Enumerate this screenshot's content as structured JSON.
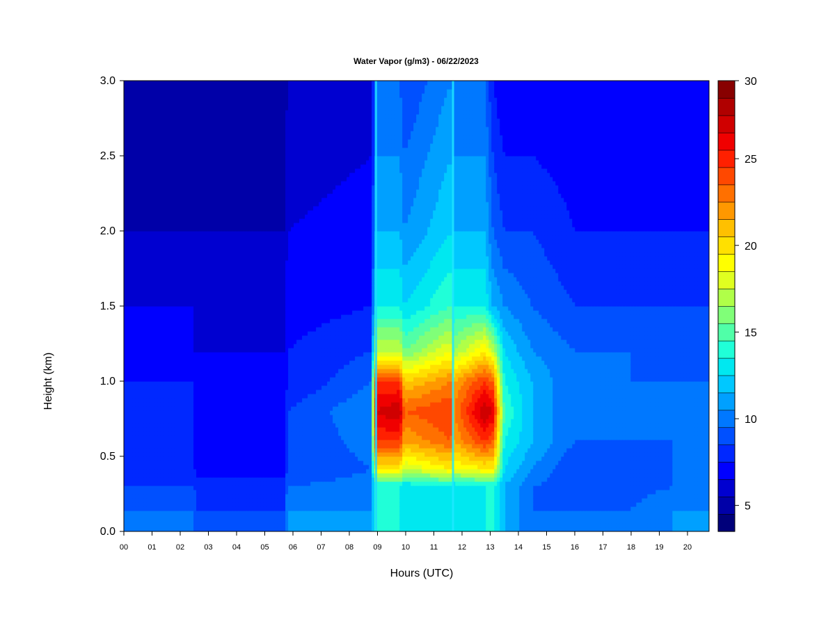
{
  "chart_data": {
    "type": "heatmap",
    "title": "Water Vapor (g/m3) - 06/22/2023",
    "xlabel": "Hours (UTC)",
    "ylabel": "Height (km)",
    "xlim": [
      0,
      20.75
    ],
    "ylim": [
      0,
      3.0
    ],
    "x_ticks": [
      "00",
      "01",
      "02",
      "03",
      "04",
      "05",
      "06",
      "07",
      "08",
      "09",
      "10",
      "11",
      "12",
      "13",
      "14",
      "15",
      "16",
      "17",
      "18",
      "19",
      "20"
    ],
    "y_ticks": [
      "0.0",
      "0.5",
      "1.0",
      "1.5",
      "2.0",
      "2.5",
      "3.0"
    ],
    "colorbar": {
      "range": [
        4,
        30
      ],
      "ticks": [
        "5",
        "10",
        "15",
        "20",
        "25",
        "30"
      ],
      "tick_values": [
        5,
        10,
        15,
        20,
        25,
        30
      ],
      "colors": [
        "#00007a",
        "#0000a8",
        "#0000d0",
        "#0000ff",
        "#0028ff",
        "#0050ff",
        "#0078ff",
        "#00a0ff",
        "#00c8ff",
        "#00e8f0",
        "#20ffd8",
        "#50ffa8",
        "#80ff78",
        "#b0ff48",
        "#e0ff20",
        "#ffff00",
        "#ffe000",
        "#ffc000",
        "#ff9800",
        "#ff7000",
        "#ff4800",
        "#ff2000",
        "#f00000",
        "#d00000",
        "#b00000",
        "#880000"
      ]
    },
    "height_levels_km": [
      0.0,
      0.15,
      0.3,
      0.42,
      0.6,
      0.8,
      1.0,
      1.2,
      1.5,
      2.0,
      2.5,
      3.0
    ],
    "hour_columns": [
      0.0,
      2.5,
      2.6,
      5.7,
      5.8,
      8.8,
      8.9,
      9.8,
      9.95,
      11.6,
      11.7,
      12.8,
      13.1,
      13.5,
      14.5,
      16,
      18,
      19.5,
      20.75
    ],
    "values": [
      [
        10,
        10,
        9,
        8,
        8,
        8,
        8,
        7,
        7,
        6,
        5.5,
        5
      ],
      [
        10,
        10,
        9,
        8,
        8,
        8,
        8,
        7,
        7,
        6,
        5.5,
        5
      ],
      [
        9,
        9,
        8.5,
        7.5,
        7.5,
        7.5,
        7,
        7,
        6.5,
        6,
        5.5,
        5
      ],
      [
        9,
        9,
        8.5,
        7.5,
        7.5,
        7.5,
        7,
        7,
        6.5,
        6,
        5.5,
        5
      ],
      [
        11,
        11,
        10,
        9,
        9,
        9,
        8,
        8,
        7.5,
        7,
        6.5,
        6
      ],
      [
        11,
        11,
        10.5,
        10,
        10.5,
        11,
        10,
        9,
        8,
        7.5,
        7,
        6.5
      ],
      [
        14,
        14,
        14,
        20,
        25,
        27,
        25,
        18,
        14,
        12,
        11,
        10
      ],
      [
        14,
        14,
        14,
        20,
        25,
        28,
        25,
        18,
        14,
        12,
        11,
        10
      ],
      [
        13,
        13,
        13,
        18,
        22,
        24,
        21,
        16,
        13,
        11,
        10,
        9
      ],
      [
        14,
        14,
        14,
        20,
        24,
        25,
        23,
        19,
        15,
        13,
        12,
        11
      ],
      [
        13,
        13,
        13,
        19,
        22,
        23,
        22,
        17,
        14,
        12,
        11,
        10
      ],
      [
        14,
        14,
        14,
        20,
        25,
        28,
        25,
        20,
        14,
        12,
        11,
        10
      ],
      [
        14,
        14,
        14,
        20,
        24,
        27,
        24,
        18,
        12,
        10,
        9,
        8
      ],
      [
        12,
        12,
        12,
        13,
        14,
        15,
        14,
        13,
        11,
        9,
        8,
        7
      ],
      [
        10,
        10,
        10,
        11,
        12,
        12,
        12,
        11,
        10,
        9,
        8,
        7
      ],
      [
        10,
        10,
        9.5,
        9,
        10,
        10,
        10,
        10,
        9,
        8,
        7.5,
        7
      ],
      [
        10,
        10,
        9.5,
        9,
        10,
        10,
        10,
        10,
        9,
        8,
        7.5,
        7
      ],
      [
        11,
        11,
        10,
        10,
        10,
        10,
        10,
        9,
        9,
        8,
        7.5,
        7
      ],
      [
        11,
        11,
        10,
        10,
        10,
        10,
        10,
        9,
        9,
        8,
        7.5,
        7
      ]
    ]
  }
}
